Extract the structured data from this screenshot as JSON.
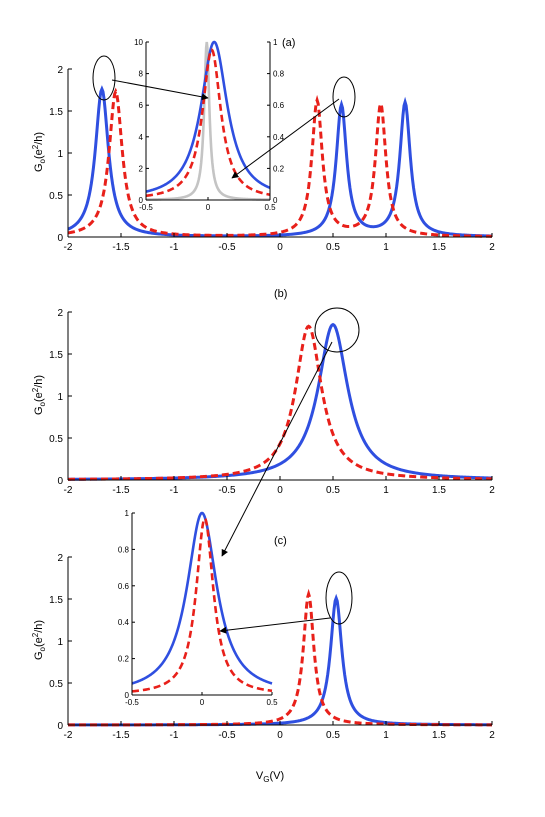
{
  "colors": {
    "blue": "#2f4fe0",
    "red": "#e8201a",
    "gray": "#c4c4c4",
    "axis": "#000000"
  },
  "labels": {
    "ylabel_main": "G",
    "ylabel_sub": "o",
    "ylabel_unit": "(e",
    "ylabel_sup": "2",
    "ylabel_tail": "/h)",
    "xlabel_main": "V",
    "xlabel_sub": "G",
    "xlabel_unit": "(V)"
  },
  "chart_data": [
    {
      "panel": "(a)",
      "type": "line",
      "xlim": [
        -2,
        2
      ],
      "ylim": [
        0,
        2
      ],
      "xticks": [
        "-2",
        "-1.5",
        "-1",
        "-0.5",
        "0",
        "0.5",
        "1",
        "1.5",
        "2"
      ],
      "yticks": [
        "0",
        "0.5",
        "1",
        "1.5",
        "2"
      ],
      "series": [
        {
          "style": "solid-blue",
          "peaks": [
            [
              -1.68,
              1.76,
              0.075
            ],
            [
              0.58,
              1.56,
              0.06
            ],
            [
              1.18,
              1.59,
              0.06
            ]
          ],
          "baseline": 0.0
        },
        {
          "style": "dashed-red",
          "peaks": [
            [
              -1.55,
              1.73,
              0.075
            ],
            [
              0.35,
              1.61,
              0.06
            ],
            [
              0.95,
              1.57,
              0.06
            ]
          ],
          "baseline": 0.0
        }
      ],
      "inset": {
        "xlim": [
          -0.5,
          0.5
        ],
        "left_ylim": [
          0,
          10
        ],
        "right_ylim": [
          0,
          1
        ],
        "xticks": [
          "-0.5",
          "0",
          "0.5"
        ],
        "left_yticks": [
          "0",
          "2",
          "4",
          "6",
          "8",
          "10"
        ],
        "right_yticks": [
          "0",
          "0.2",
          "0.4",
          "0.6",
          "0.8",
          "1"
        ],
        "series": [
          {
            "style": "solid-gray",
            "center": -0.01,
            "width": 0.025,
            "peak": 1.0,
            "axis": "left"
          },
          {
            "style": "solid-blue",
            "center": 0.05,
            "width": 0.13,
            "peak": 1.0,
            "axis": "right"
          },
          {
            "style": "dashed-red",
            "center": 0.03,
            "width": 0.09,
            "peak": 0.95,
            "axis": "right"
          }
        ]
      }
    },
    {
      "panel": "(b)",
      "type": "line",
      "xlim": [
        -2,
        2
      ],
      "ylim": [
        0,
        2
      ],
      "xticks": [
        "-2",
        "-1.5",
        "-1",
        "-0.5",
        "0",
        "0.5",
        "1",
        "1.5",
        "2"
      ],
      "yticks": [
        "0",
        "0.5",
        "1",
        "1.5",
        "2"
      ],
      "series": [
        {
          "style": "solid-blue",
          "peaks": [
            [
              0.5,
              1.85,
              0.17
            ]
          ],
          "baseline": 0.0
        },
        {
          "style": "dashed-red",
          "peaks": [
            [
              0.27,
              1.83,
              0.15
            ]
          ],
          "baseline": 0.0
        }
      ]
    },
    {
      "panel": "(c)",
      "type": "line",
      "xlim": [
        -2,
        2
      ],
      "ylim": [
        0,
        2
      ],
      "xticks": [
        "-2",
        "-1.5",
        "-1",
        "-0.5",
        "0",
        "0.5",
        "1",
        "1.5",
        "2"
      ],
      "yticks": [
        "0",
        "0.5",
        "1",
        "1.5",
        "2"
      ],
      "series": [
        {
          "style": "solid-blue",
          "peaks": [
            [
              0.53,
              1.51,
              0.065
            ]
          ],
          "baseline": 0.0
        },
        {
          "style": "dashed-red",
          "peaks": [
            [
              0.27,
              1.56,
              0.06
            ]
          ],
          "baseline": 0.0
        }
      ],
      "inset": {
        "xlim": [
          -0.5,
          0.5
        ],
        "ylim": [
          0,
          1
        ],
        "xticks": [
          "-0.5",
          "0",
          "0.5"
        ],
        "yticks": [
          "0",
          "0.2",
          "0.4",
          "0.6",
          "0.8",
          "1"
        ],
        "series": [
          {
            "style": "solid-blue",
            "center": 0.0,
            "width": 0.13,
            "peak": 1.0
          },
          {
            "style": "dashed-red",
            "center": 0.02,
            "width": 0.075,
            "peak": 0.97
          }
        ]
      }
    }
  ]
}
